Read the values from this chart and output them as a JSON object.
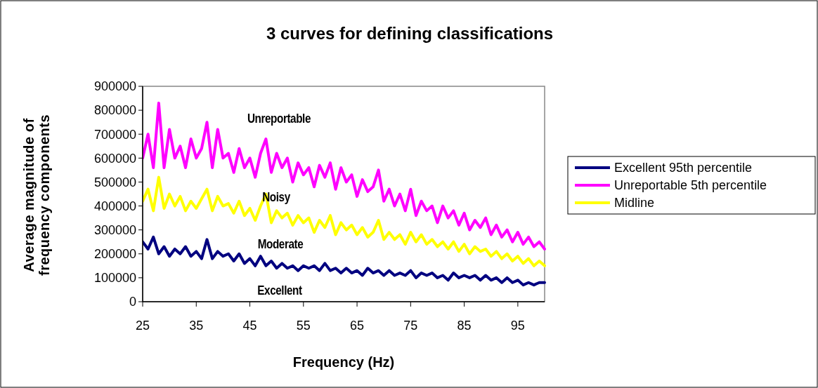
{
  "chart_data": {
    "type": "line",
    "title": "3 curves for defining classifications",
    "xlabel": "Frequency (Hz)",
    "ylabel": "Average magnitude of frequency components",
    "x": [
      25,
      26,
      27,
      28,
      29,
      30,
      31,
      32,
      33,
      34,
      35,
      36,
      37,
      38,
      39,
      40,
      41,
      42,
      43,
      44,
      45,
      46,
      47,
      48,
      49,
      50,
      51,
      52,
      53,
      54,
      55,
      56,
      57,
      58,
      59,
      60,
      61,
      62,
      63,
      64,
      65,
      66,
      67,
      68,
      69,
      70,
      71,
      72,
      73,
      74,
      75,
      76,
      77,
      78,
      79,
      80,
      81,
      82,
      83,
      84,
      85,
      86,
      87,
      88,
      89,
      90,
      91,
      92,
      93,
      94,
      95,
      96,
      97,
      98,
      99,
      100
    ],
    "series": [
      {
        "name": "Excellent 95th percentile",
        "color": "#000080",
        "values": [
          250000,
          220000,
          270000,
          200000,
          230000,
          190000,
          220000,
          200000,
          230000,
          190000,
          210000,
          180000,
          260000,
          180000,
          210000,
          190000,
          200000,
          170000,
          200000,
          160000,
          180000,
          150000,
          190000,
          150000,
          170000,
          140000,
          160000,
          140000,
          150000,
          130000,
          150000,
          140000,
          150000,
          130000,
          160000,
          130000,
          140000,
          120000,
          140000,
          120000,
          130000,
          110000,
          140000,
          120000,
          130000,
          110000,
          130000,
          110000,
          120000,
          110000,
          130000,
          100000,
          120000,
          110000,
          120000,
          100000,
          110000,
          90000,
          120000,
          100000,
          110000,
          100000,
          110000,
          90000,
          110000,
          90000,
          100000,
          80000,
          100000,
          80000,
          90000,
          70000,
          80000,
          70000,
          80000,
          80000
        ]
      },
      {
        "name": "Unreportable 5th percentile",
        "color": "#ff00ff",
        "values": [
          600000,
          700000,
          560000,
          830000,
          560000,
          720000,
          600000,
          650000,
          560000,
          680000,
          600000,
          640000,
          750000,
          560000,
          720000,
          600000,
          620000,
          540000,
          640000,
          560000,
          600000,
          520000,
          620000,
          680000,
          540000,
          620000,
          560000,
          600000,
          500000,
          580000,
          530000,
          560000,
          480000,
          570000,
          520000,
          580000,
          470000,
          560000,
          500000,
          530000,
          440000,
          510000,
          460000,
          480000,
          550000,
          420000,
          470000,
          400000,
          450000,
          380000,
          470000,
          360000,
          420000,
          380000,
          400000,
          330000,
          400000,
          350000,
          380000,
          320000,
          370000,
          300000,
          340000,
          310000,
          350000,
          280000,
          320000,
          270000,
          300000,
          250000,
          290000,
          240000,
          270000,
          230000,
          250000,
          220000
        ]
      },
      {
        "name": "Midline",
        "color": "#ffff00",
        "values": [
          420000,
          470000,
          380000,
          520000,
          390000,
          450000,
          400000,
          440000,
          380000,
          420000,
          390000,
          430000,
          470000,
          380000,
          440000,
          400000,
          410000,
          370000,
          420000,
          360000,
          390000,
          340000,
          400000,
          450000,
          330000,
          380000,
          350000,
          370000,
          320000,
          360000,
          330000,
          350000,
          290000,
          340000,
          310000,
          360000,
          280000,
          330000,
          300000,
          320000,
          280000,
          310000,
          270000,
          290000,
          340000,
          260000,
          290000,
          260000,
          280000,
          240000,
          290000,
          250000,
          280000,
          240000,
          260000,
          230000,
          250000,
          220000,
          250000,
          210000,
          240000,
          200000,
          230000,
          210000,
          220000,
          190000,
          210000,
          180000,
          200000,
          170000,
          190000,
          160000,
          180000,
          150000,
          170000,
          150000
        ]
      }
    ],
    "annotations": [
      "Unreportable",
      "Noisy",
      "Moderate",
      "Excellent"
    ],
    "xlim": [
      25,
      100
    ],
    "xticks": [
      25,
      35,
      45,
      55,
      65,
      75,
      85,
      95
    ],
    "ylim": [
      0,
      900000
    ],
    "yticks": [
      0,
      100000,
      200000,
      300000,
      400000,
      500000,
      600000,
      700000,
      800000,
      900000
    ],
    "legend": "right",
    "line_style": "solid",
    "marker": "none"
  }
}
